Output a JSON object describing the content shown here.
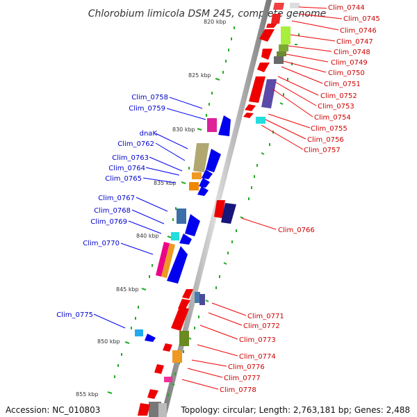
{
  "title": "Chlorobium limicola DSM 245, complete genome",
  "footer": {
    "accession": "Accession: NC_010803",
    "stats": "Topology: circular; Length: 2,763,181 bp; Genes: 2,488"
  },
  "scale_labels": [
    "820 kbp",
    "825 kbp",
    "830 kbp",
    "835 kbp",
    "840 kbp",
    "845 kbp",
    "850 kbp",
    "855 kbp"
  ],
  "right_labels": [
    "Clim_0744",
    "Clim_0745",
    "Clim_0746",
    "Clim_0747",
    "Clim_0748",
    "Clim_0749",
    "Clim_0750",
    "Clim_0751",
    "Clim_0752",
    "Clim_0753",
    "Clim_0754",
    "Clim_0755",
    "Clim_0756",
    "Clim_0757",
    "Clim_0766",
    "Clim_0771",
    "Clim_0772",
    "Clim_0773",
    "Clim_0774",
    "Clim_0776",
    "Clim_0777",
    "Clim_0778"
  ],
  "left_labels": [
    "Clim_0758",
    "Clim_0759",
    "dnaK",
    "Clim_0762",
    "Clim_0763",
    "Clim_0764",
    "Clim_0765",
    "Clim_0767",
    "Clim_0768",
    "Clim_0769",
    "Clim_0770",
    "Clim_0775"
  ],
  "colors": {
    "backbone": "#808080",
    "reverse_strand": "#ee0000",
    "forward_strand": "#0000ee",
    "ticks": "#22aa22",
    "label_right": "#cc0000",
    "label_left": "#0000cc"
  }
}
